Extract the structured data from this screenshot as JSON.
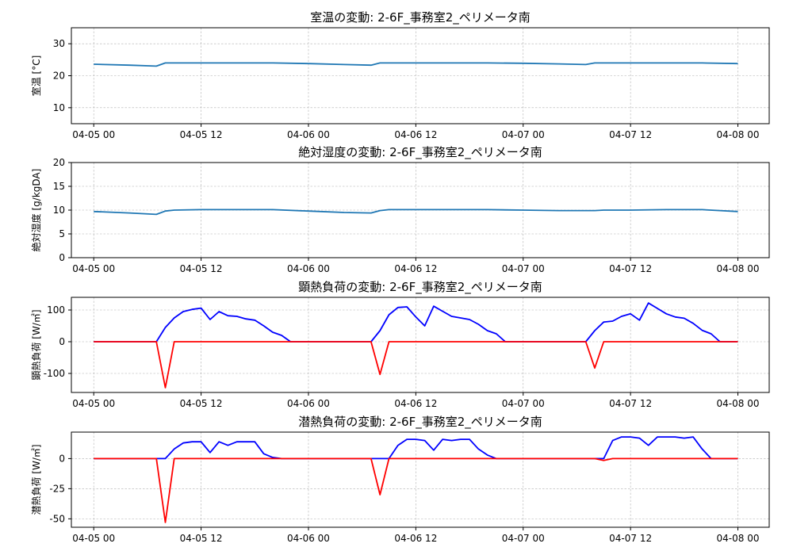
{
  "chart_data": [
    {
      "type": "line",
      "title": "室温の変動: 2-6F_事務室2_ペリメータ南",
      "xlabel": "",
      "ylabel": "室温 [°C]",
      "xlim": [
        "04-04 21:30",
        "04-08 03:30"
      ],
      "ylim": [
        5,
        35
      ],
      "yticks": [
        10,
        20,
        30
      ],
      "xticks": [
        "04-05 00",
        "04-05 12",
        "04-06 00",
        "04-06 12",
        "04-07 00",
        "04-07 12",
        "04-08 00"
      ],
      "grid": true,
      "series": [
        {
          "color": "#1f77b4",
          "x": [
            "04-05 00",
            "04-05 04",
            "04-05 07",
            "04-05 08",
            "04-05 12",
            "04-05 16",
            "04-05 20",
            "04-06 00",
            "04-06 04",
            "04-06 07",
            "04-06 08",
            "04-06 12",
            "04-06 16",
            "04-06 20",
            "04-07 00",
            "04-07 04",
            "04-07 07",
            "04-07 08",
            "04-07 12",
            "04-07 16",
            "04-07 20",
            "04-08 00"
          ],
          "y": [
            23.6,
            23.3,
            23.0,
            24.0,
            24.0,
            24.0,
            24.0,
            23.8,
            23.5,
            23.3,
            24.0,
            24.0,
            24.0,
            24.0,
            23.9,
            23.7,
            23.5,
            24.0,
            24.0,
            24.0,
            24.0,
            23.8
          ]
        }
      ]
    },
    {
      "type": "line",
      "title": "絶対湿度の変動: 2-6F_事務室2_ペリメータ南",
      "xlabel": "",
      "ylabel": "絶対湿度 [g/kgDA]",
      "xlim": [
        "04-04 21:30",
        "04-08 03:30"
      ],
      "ylim": [
        0,
        20
      ],
      "yticks": [
        0,
        5,
        10,
        15,
        20
      ],
      "xticks": [
        "04-05 00",
        "04-05 12",
        "04-06 00",
        "04-06 12",
        "04-07 00",
        "04-07 12",
        "04-08 00"
      ],
      "grid": true,
      "series": [
        {
          "color": "#1f77b4",
          "x": [
            "04-05 00",
            "04-05 04",
            "04-05 07",
            "04-05 08",
            "04-05 09",
            "04-05 12",
            "04-05 16",
            "04-05 20",
            "04-06 00",
            "04-06 04",
            "04-06 07",
            "04-06 08",
            "04-06 09",
            "04-06 12",
            "04-06 16",
            "04-06 20",
            "04-07 00",
            "04-07 04",
            "04-07 08",
            "04-07 09",
            "04-07 12",
            "04-07 16",
            "04-07 20",
            "04-08 00"
          ],
          "y": [
            9.7,
            9.4,
            9.1,
            9.8,
            10.0,
            10.1,
            10.1,
            10.1,
            9.8,
            9.5,
            9.4,
            9.9,
            10.1,
            10.1,
            10.1,
            10.1,
            10.0,
            9.9,
            9.9,
            10.0,
            10.0,
            10.1,
            10.1,
            9.7
          ]
        }
      ]
    },
    {
      "type": "line",
      "title": "顕熱負荷の変動: 2-6F_事務室2_ペリメータ南",
      "xlabel": "",
      "ylabel": "顕熱負荷 [W/㎡]",
      "xlim": [
        "04-04 21:30",
        "04-08 03:30"
      ],
      "ylim": [
        -160,
        140
      ],
      "yticks": [
        -100,
        0,
        100
      ],
      "xticks": [
        "04-05 00",
        "04-05 12",
        "04-06 00",
        "04-06 12",
        "04-07 00",
        "04-07 12",
        "04-08 00"
      ],
      "grid": true,
      "series": [
        {
          "color": "#0000ff",
          "x": [
            "04-05 00",
            "04-05 07",
            "04-05 08",
            "04-05 09",
            "04-05 10",
            "04-05 11",
            "04-05 12",
            "04-05 13",
            "04-05 14",
            "04-05 15",
            "04-05 16",
            "04-05 17",
            "04-05 18",
            "04-05 19",
            "04-05 20",
            "04-05 21",
            "04-05 22",
            "04-06 07",
            "04-06 08",
            "04-06 09",
            "04-06 10",
            "04-06 11",
            "04-06 12",
            "04-06 13",
            "04-06 14",
            "04-06 15",
            "04-06 16",
            "04-06 17",
            "04-06 18",
            "04-06 19",
            "04-06 20",
            "04-06 21",
            "04-06 22",
            "04-07 07",
            "04-07 08",
            "04-07 09",
            "04-07 10",
            "04-07 11",
            "04-07 12",
            "04-07 13",
            "04-07 14",
            "04-07 15",
            "04-07 16",
            "04-07 17",
            "04-07 18",
            "04-07 19",
            "04-07 20",
            "04-07 21",
            "04-07 22",
            "04-08 00"
          ],
          "y": [
            0,
            0,
            45,
            75,
            95,
            102,
            106,
            70,
            95,
            82,
            80,
            72,
            68,
            50,
            30,
            20,
            0,
            0,
            35,
            85,
            108,
            110,
            78,
            50,
            112,
            96,
            80,
            75,
            70,
            55,
            35,
            25,
            0,
            0,
            35,
            62,
            65,
            80,
            88,
            68,
            122,
            105,
            88,
            78,
            74,
            58,
            36,
            25,
            0,
            0
          ]
        },
        {
          "color": "#ff0000",
          "x": [
            "04-05 00",
            "04-05 07",
            "04-05 08",
            "04-05 09",
            "04-05 22",
            "04-06 07",
            "04-06 08",
            "04-06 09",
            "04-06 22",
            "04-07 07",
            "04-07 08",
            "04-07 09",
            "04-07 22",
            "04-08 00"
          ],
          "y": [
            0,
            0,
            -145,
            0,
            0,
            0,
            -103,
            0,
            0,
            0,
            -83,
            0,
            0,
            0
          ]
        }
      ]
    },
    {
      "type": "line",
      "title": "潜熱負荷の変動: 2-6F_事務室2_ペリメータ南",
      "xlabel": "",
      "ylabel": "潜熱負荷 [W/㎡]",
      "xlim": [
        "04-04 21:30",
        "04-08 03:30"
      ],
      "ylim": [
        -57,
        22
      ],
      "yticks": [
        -50,
        -25,
        0
      ],
      "xticks": [
        "04-05 00",
        "04-05 12",
        "04-06 00",
        "04-06 12",
        "04-07 00",
        "04-07 12",
        "04-08 00"
      ],
      "grid": true,
      "series": [
        {
          "color": "#0000ff",
          "x": [
            "04-05 00",
            "04-05 08",
            "04-05 09",
            "04-05 10",
            "04-05 11",
            "04-05 12",
            "04-05 13",
            "04-05 14",
            "04-05 15",
            "04-05 16",
            "04-05 17",
            "04-05 18",
            "04-05 19",
            "04-05 20",
            "04-05 21",
            "04-06 08",
            "04-06 09",
            "04-06 10",
            "04-06 11",
            "04-06 12",
            "04-06 13",
            "04-06 14",
            "04-06 15",
            "04-06 16",
            "04-06 17",
            "04-06 18",
            "04-06 19",
            "04-06 20",
            "04-06 21",
            "04-07 08",
            "04-07 09",
            "04-07 10",
            "04-07 11",
            "04-07 12",
            "04-07 13",
            "04-07 14",
            "04-07 15",
            "04-07 16",
            "04-07 17",
            "04-07 18",
            "04-07 19",
            "04-07 20",
            "04-07 21",
            "04-08 00"
          ],
          "y": [
            0,
            0,
            8,
            13,
            14,
            14,
            5,
            14,
            11,
            14,
            14,
            14,
            4,
            1,
            0,
            0,
            0,
            11,
            16,
            16,
            15,
            7,
            16,
            15,
            16,
            16,
            8,
            3,
            0,
            0,
            0,
            15,
            18,
            18,
            17,
            11,
            18,
            18,
            18,
            17,
            18,
            8,
            0,
            0
          ]
        },
        {
          "color": "#ff0000",
          "x": [
            "04-05 00",
            "04-05 07",
            "04-05 08",
            "04-05 09",
            "04-05 22",
            "04-06 07",
            "04-06 08",
            "04-06 09",
            "04-06 22",
            "04-07 08",
            "04-07 09",
            "04-07 10",
            "04-07 22",
            "04-08 00"
          ],
          "y": [
            0,
            0,
            -53,
            0,
            0,
            0,
            -30,
            0,
            0,
            0,
            -1.5,
            0,
            0,
            0
          ]
        }
      ]
    }
  ]
}
